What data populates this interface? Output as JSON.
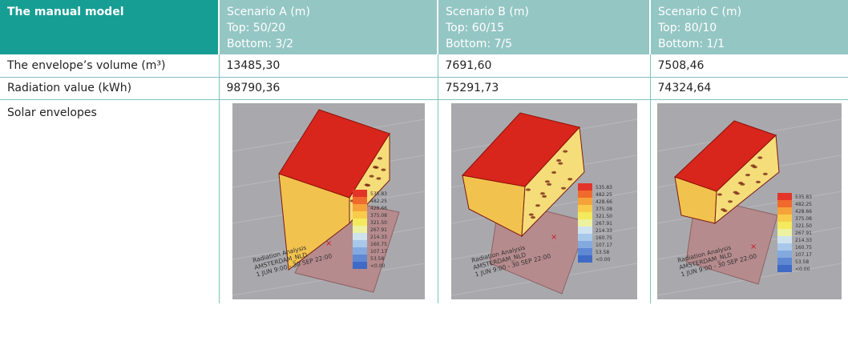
{
  "header": {
    "first": "The manual model",
    "scenarios": [
      {
        "title": "Scenario A (m)",
        "top": "Top: 50/20",
        "bottom": "Bottom: 3/2"
      },
      {
        "title": "Scenario B (m)",
        "top": "Top: 60/15",
        "bottom": "Bottom: 7/5"
      },
      {
        "title": "Scenario C (m)",
        "top": "Top: 80/10",
        "bottom": "Bottom: 1/1"
      }
    ]
  },
  "rows": [
    {
      "label": "The envelope’s volume (m³)",
      "values": [
        "13485,30",
        "7691,60",
        "7508,46"
      ]
    },
    {
      "label": "Radiation value (kWh)",
      "values": [
        "98790,36",
        "75291,73",
        "74324,64"
      ]
    },
    {
      "label": "Solar envelopes"
    }
  ],
  "render_legend": {
    "values": [
      "535.83",
      "482.25",
      "428.66",
      "375.08",
      "321.50",
      "267.91",
      "214.33",
      "160.75",
      "107.17",
      "53.58",
      "<0.00"
    ],
    "colors": [
      "#e3342a",
      "#ef6a2c",
      "#f5a23a",
      "#f8cc4a",
      "#f4ea5d",
      "#ecf2a0",
      "#cfe3ef",
      "#a8c8ea",
      "#84a9df",
      "#5f88d3",
      "#3f6ac5"
    ]
  },
  "render_caption": [
    "Radiation Analysis",
    "AMSTERDAM_NLD",
    "1 JUN 9:00 - 30 SEP 22:00"
  ]
}
